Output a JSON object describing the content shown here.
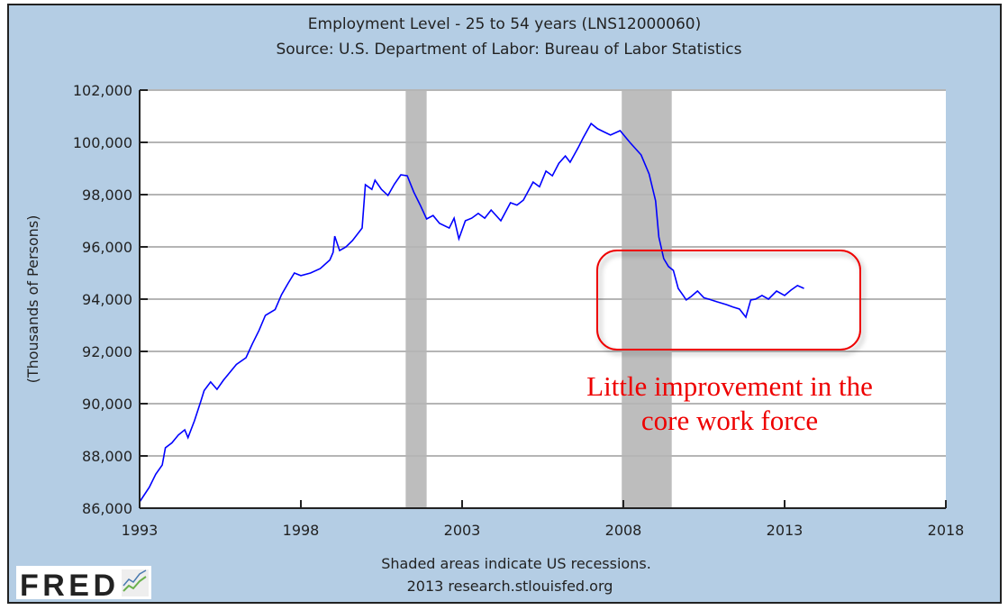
{
  "chart_data": {
    "type": "line",
    "title": "Employment Level - 25 to 54 years (LNS12000060)",
    "subtitle": "Source: U.S. Department of Labor: Bureau of Labor Statistics",
    "xlabel": "",
    "ylabel": "(Thousands of Persons)",
    "xlim": [
      1993,
      2018
    ],
    "ylim": [
      86000,
      102000
    ],
    "xticks": [
      "1993",
      "1998",
      "2003",
      "2008",
      "2013",
      "2018"
    ],
    "yticks": [
      "86,000",
      "88,000",
      "90,000",
      "92,000",
      "94,000",
      "96,000",
      "98,000",
      "100,000",
      "102,000"
    ],
    "grid": true,
    "recessions": [
      [
        2001.25,
        2001.9
      ],
      [
        2007.95,
        2009.5
      ]
    ],
    "series": [
      {
        "name": "Employment Level - 25 to 54 years",
        "color": "#0000ff",
        "points": [
          [
            1993.0,
            86240
          ],
          [
            1993.3,
            86800
          ],
          [
            1993.5,
            87300
          ],
          [
            1993.7,
            87650
          ],
          [
            1993.8,
            88310
          ],
          [
            1994.0,
            88500
          ],
          [
            1994.2,
            88800
          ],
          [
            1994.4,
            89000
          ],
          [
            1994.5,
            88700
          ],
          [
            1994.7,
            89350
          ],
          [
            1994.9,
            90100
          ],
          [
            1995.0,
            90500
          ],
          [
            1995.2,
            90830
          ],
          [
            1995.4,
            90550
          ],
          [
            1995.6,
            90900
          ],
          [
            1995.8,
            91200
          ],
          [
            1996.0,
            91500
          ],
          [
            1996.3,
            91760
          ],
          [
            1996.5,
            92300
          ],
          [
            1996.7,
            92800
          ],
          [
            1996.9,
            93380
          ],
          [
            1997.2,
            93600
          ],
          [
            1997.4,
            94170
          ],
          [
            1997.6,
            94600
          ],
          [
            1997.8,
            95000
          ],
          [
            1998.0,
            94900
          ],
          [
            1998.3,
            95000
          ],
          [
            1998.6,
            95170
          ],
          [
            1998.9,
            95500
          ],
          [
            1999.0,
            95790
          ],
          [
            1999.05,
            96410
          ],
          [
            1999.2,
            95860
          ],
          [
            1999.4,
            96000
          ],
          [
            1999.6,
            96240
          ],
          [
            1999.9,
            96720
          ],
          [
            2000.0,
            98380
          ],
          [
            2000.2,
            98200
          ],
          [
            2000.3,
            98550
          ],
          [
            2000.5,
            98200
          ],
          [
            2000.7,
            97970
          ],
          [
            2000.9,
            98400
          ],
          [
            2001.1,
            98760
          ],
          [
            2001.3,
            98720
          ],
          [
            2001.5,
            98100
          ],
          [
            2001.7,
            97600
          ],
          [
            2001.9,
            97070
          ],
          [
            2002.1,
            97200
          ],
          [
            2002.3,
            96900
          ],
          [
            2002.6,
            96720
          ],
          [
            2002.75,
            97100
          ],
          [
            2002.9,
            96310
          ],
          [
            2003.1,
            97000
          ],
          [
            2003.3,
            97100
          ],
          [
            2003.5,
            97280
          ],
          [
            2003.7,
            97100
          ],
          [
            2003.9,
            97410
          ],
          [
            2004.2,
            97000
          ],
          [
            2004.5,
            97690
          ],
          [
            2004.7,
            97600
          ],
          [
            2004.9,
            97790
          ],
          [
            2005.2,
            98480
          ],
          [
            2005.4,
            98300
          ],
          [
            2005.6,
            98900
          ],
          [
            2005.8,
            98720
          ],
          [
            2006.0,
            99200
          ],
          [
            2006.2,
            99480
          ],
          [
            2006.35,
            99240
          ],
          [
            2006.6,
            99800
          ],
          [
            2006.75,
            100170
          ],
          [
            2007.0,
            100720
          ],
          [
            2007.2,
            100520
          ],
          [
            2007.4,
            100400
          ],
          [
            2007.6,
            100280
          ],
          [
            2007.9,
            100450
          ],
          [
            2008.2,
            100000
          ],
          [
            2008.55,
            99520
          ],
          [
            2008.8,
            98790
          ],
          [
            2009.0,
            97760
          ],
          [
            2009.1,
            96380
          ],
          [
            2009.25,
            95550
          ],
          [
            2009.4,
            95250
          ],
          [
            2009.55,
            95100
          ],
          [
            2009.7,
            94410
          ],
          [
            2009.85,
            94150
          ],
          [
            2009.95,
            93970
          ],
          [
            2010.1,
            94100
          ],
          [
            2010.3,
            94310
          ],
          [
            2010.5,
            94050
          ],
          [
            2010.65,
            94000
          ],
          [
            2010.9,
            93900
          ],
          [
            2011.2,
            93790
          ],
          [
            2011.4,
            93700
          ],
          [
            2011.6,
            93620
          ],
          [
            2011.8,
            93310
          ],
          [
            2011.95,
            93970
          ],
          [
            2012.1,
            94000
          ],
          [
            2012.3,
            94140
          ],
          [
            2012.5,
            94000
          ],
          [
            2012.75,
            94310
          ],
          [
            2013.0,
            94140
          ],
          [
            2013.2,
            94350
          ],
          [
            2013.4,
            94520
          ],
          [
            2013.6,
            94410
          ]
        ]
      }
    ],
    "annotation": {
      "line1": "Little improvement in the",
      "line2": "core work force",
      "color": "#ee0000"
    },
    "footer": {
      "note": "Shaded areas indicate US recessions.",
      "source": "2013 research.stlouisfed.org",
      "logo": "FRED"
    }
  }
}
